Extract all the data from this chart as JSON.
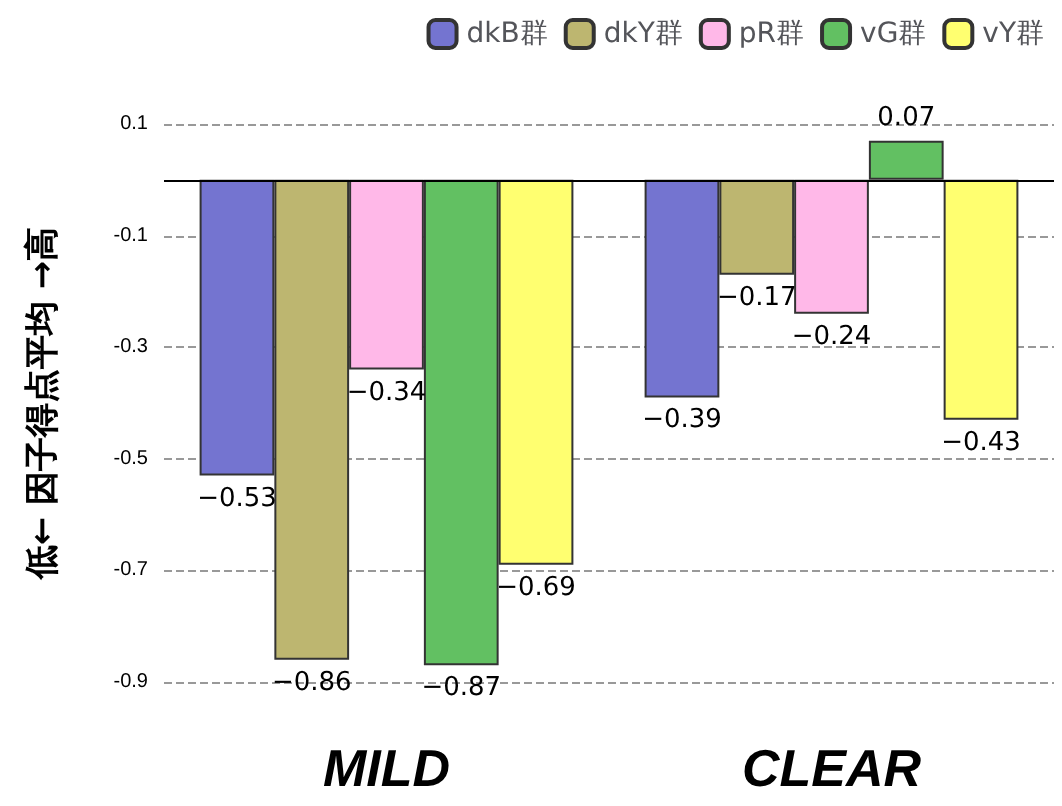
{
  "chart_data": {
    "type": "bar",
    "ylabel": "低← 因子得点平均 →高",
    "categories": [
      "MILD",
      "CLEAR"
    ],
    "series": [
      {
        "name": "dkB群",
        "color": "#7474d0",
        "values": [
          -0.53,
          -0.39
        ]
      },
      {
        "name": "dkY群",
        "color": "#bdb670",
        "values": [
          -0.86,
          -0.17
        ]
      },
      {
        "name": "pR群",
        "color": "#ffb8e8",
        "values": [
          -0.34,
          -0.24
        ]
      },
      {
        "name": "vG群",
        "color": "#62c062",
        "values": [
          -0.87,
          0.07
        ]
      },
      {
        "name": "vY群",
        "color": "#ffff70",
        "values": [
          -0.69,
          -0.43
        ]
      }
    ],
    "ylim": [
      -0.9,
      0.1
    ],
    "yticks": [
      -0.9,
      -0.7,
      -0.5,
      -0.3,
      -0.1,
      0.1
    ],
    "grid": "y",
    "legend": "top right",
    "data_labels": true
  }
}
